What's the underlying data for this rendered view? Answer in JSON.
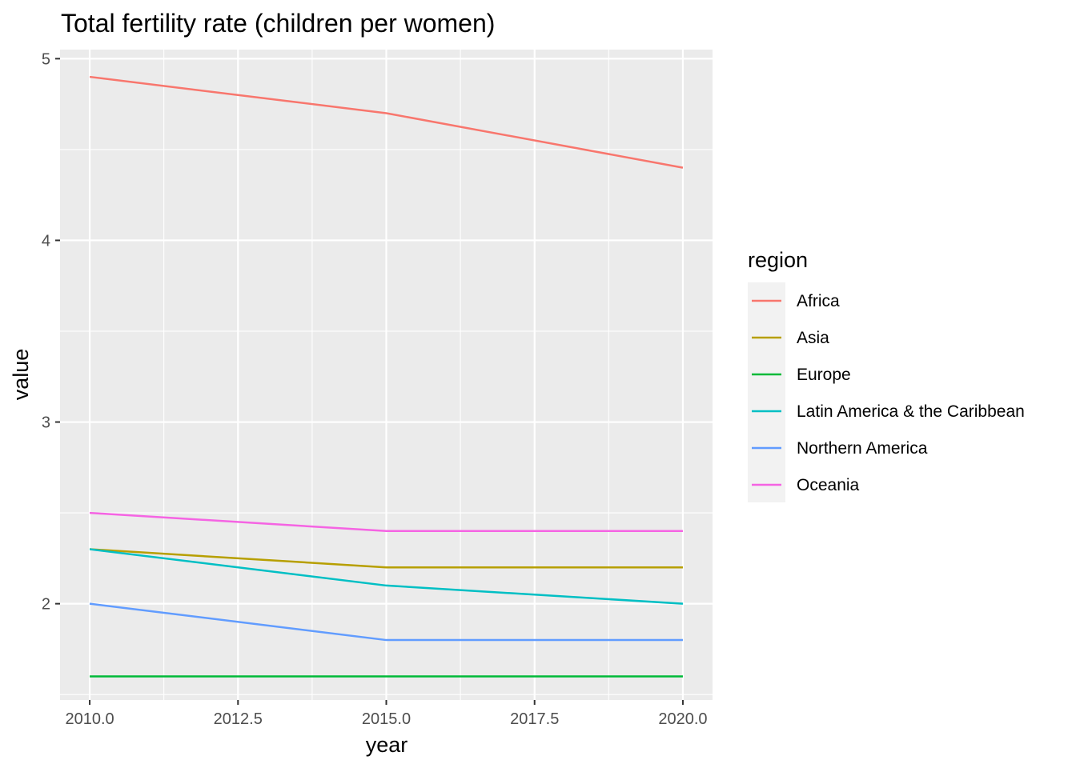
{
  "chart_data": {
    "type": "line",
    "title": "Total fertility rate (children per women)",
    "xlabel": "year",
    "ylabel": "value",
    "xlim": [
      2009.5,
      2020.5
    ],
    "ylim": [
      1.47,
      5.05
    ],
    "x_ticks": [
      2010,
      2012.5,
      2015,
      2017.5,
      2020
    ],
    "x_tick_labels": [
      "2010.0",
      "2012.5",
      "2015.0",
      "2017.5",
      "2020.0"
    ],
    "y_ticks": [
      2,
      3,
      4,
      5
    ],
    "y_tick_labels": [
      "2",
      "3",
      "4",
      "5"
    ],
    "grid": true,
    "legend": {
      "title": "region",
      "position": "right"
    },
    "x": [
      2010,
      2015,
      2020
    ],
    "series": [
      {
        "name": "Africa",
        "color": "#F8766D",
        "values": [
          4.9,
          4.7,
          4.4
        ]
      },
      {
        "name": "Asia",
        "color": "#B79F00",
        "values": [
          2.3,
          2.2,
          2.2
        ]
      },
      {
        "name": "Europe",
        "color": "#00BA38",
        "values": [
          1.6,
          1.6,
          1.6
        ]
      },
      {
        "name": "Latin America & the Caribbean",
        "color": "#00BFC4",
        "values": [
          2.3,
          2.1,
          2.0
        ]
      },
      {
        "name": "Northern America",
        "color": "#619CFF",
        "values": [
          2.0,
          1.8,
          1.8
        ]
      },
      {
        "name": "Oceania",
        "color": "#F564E3",
        "values": [
          2.5,
          2.4,
          2.4
        ]
      }
    ]
  }
}
